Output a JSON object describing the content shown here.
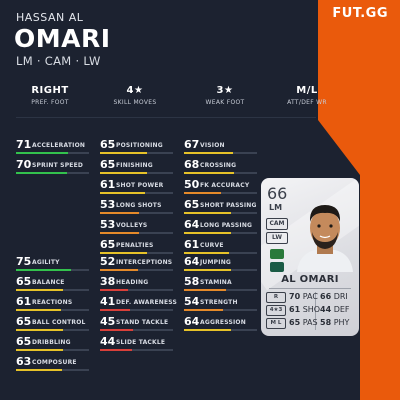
{
  "brand": "FUT.GG",
  "player": {
    "first_name": "HASSAN AL",
    "last_name": "OMARI",
    "positions_line": "LM · CAM · LW"
  },
  "info": [
    {
      "value": "RIGHT",
      "label": "PREF. FOOT"
    },
    {
      "value": "4★",
      "label": "SKILL MOVES"
    },
    {
      "value": "3★",
      "label": "WEAK FOOT"
    },
    {
      "value": "M/L",
      "label": "ATT/DEF WR"
    }
  ],
  "colors": {
    "green": "#33c24d",
    "yellow": "#e6c229",
    "orange": "#e58a2a",
    "red": "#d9403a"
  },
  "stats": [
    [
      {
        "value": "71",
        "name": "ACCELERATION",
        "color": "#33c24d",
        "level": 0.71
      },
      {
        "value": "70",
        "name": "SPRINT SPEED",
        "color": "#33c24d",
        "level": 0.7
      }
    ],
    [
      {
        "value": "65",
        "name": "POSITIONING",
        "color": "#e6c229",
        "level": 0.65
      },
      {
        "value": "65",
        "name": "FINISHING",
        "color": "#e6c229",
        "level": 0.65
      },
      {
        "value": "61",
        "name": "SHOT POWER",
        "color": "#e6c229",
        "level": 0.61
      },
      {
        "value": "53",
        "name": "LONG SHOTS",
        "color": "#e58a2a",
        "level": 0.53
      },
      {
        "value": "53",
        "name": "VOLLEYS",
        "color": "#e58a2a",
        "level": 0.53
      },
      {
        "value": "65",
        "name": "PENALTIES",
        "color": "#e6c229",
        "level": 0.65
      }
    ],
    [
      {
        "value": "67",
        "name": "VISION",
        "color": "#e6c229",
        "level": 0.67
      },
      {
        "value": "68",
        "name": "CROSSING",
        "color": "#e6c229",
        "level": 0.68
      },
      {
        "value": "50",
        "name": "FK ACCURACY",
        "color": "#e58a2a",
        "level": 0.5
      },
      {
        "value": "65",
        "name": "SHORT PASSING",
        "color": "#e6c229",
        "level": 0.65
      },
      {
        "value": "64",
        "name": "LONG PASSING",
        "color": "#e6c229",
        "level": 0.64
      },
      {
        "value": "61",
        "name": "CURVE",
        "color": "#e6c229",
        "level": 0.61
      }
    ],
    [
      {
        "value": "75",
        "name": "AGILITY",
        "color": "#33c24d",
        "level": 0.75
      },
      {
        "value": "65",
        "name": "BALANCE",
        "color": "#e6c229",
        "level": 0.65
      },
      {
        "value": "61",
        "name": "REACTIONS",
        "color": "#e6c229",
        "level": 0.61
      },
      {
        "value": "65",
        "name": "BALL CONTROL",
        "color": "#e6c229",
        "level": 0.65
      },
      {
        "value": "65",
        "name": "DRIBBLING",
        "color": "#e6c229",
        "level": 0.65
      },
      {
        "value": "63",
        "name": "COMPOSURE",
        "color": "#e6c229",
        "level": 0.63
      }
    ],
    [
      {
        "value": "52",
        "name": "INTERCEPTIONS",
        "color": "#e58a2a",
        "level": 0.52
      },
      {
        "value": "38",
        "name": "HEADING",
        "color": "#d9403a",
        "level": 0.38
      },
      {
        "value": "41",
        "name": "DEF. AWARENESS",
        "color": "#d9403a",
        "level": 0.41
      },
      {
        "value": "45",
        "name": "STAND TACKLE",
        "color": "#d9403a",
        "level": 0.45
      },
      {
        "value": "44",
        "name": "SLIDE TACKLE",
        "color": "#d9403a",
        "level": 0.44
      }
    ],
    [
      {
        "value": "64",
        "name": "JUMPING",
        "color": "#e6c229",
        "level": 0.64
      },
      {
        "value": "58",
        "name": "STAMINA",
        "color": "#e58a2a",
        "level": 0.58
      },
      {
        "value": "54",
        "name": "STRENGTH",
        "color": "#e58a2a",
        "level": 0.54
      },
      {
        "value": "64",
        "name": "AGGRESSION",
        "color": "#e6c229",
        "level": 0.64
      }
    ]
  ],
  "card": {
    "rating": "66",
    "position": "LM",
    "alt_positions": [
      "CAM",
      "LW"
    ],
    "name": "AL OMARI",
    "tags": [
      "R",
      "4★3",
      "M L"
    ],
    "left_stats": [
      {
        "value": "70",
        "label": "PAC"
      },
      {
        "value": "61",
        "label": "SHO"
      },
      {
        "value": "65",
        "label": "PAS"
      }
    ],
    "right_stats": [
      {
        "value": "66",
        "label": "DRI"
      },
      {
        "value": "44",
        "label": "DEF"
      },
      {
        "value": "58",
        "label": "PHY"
      }
    ]
  }
}
